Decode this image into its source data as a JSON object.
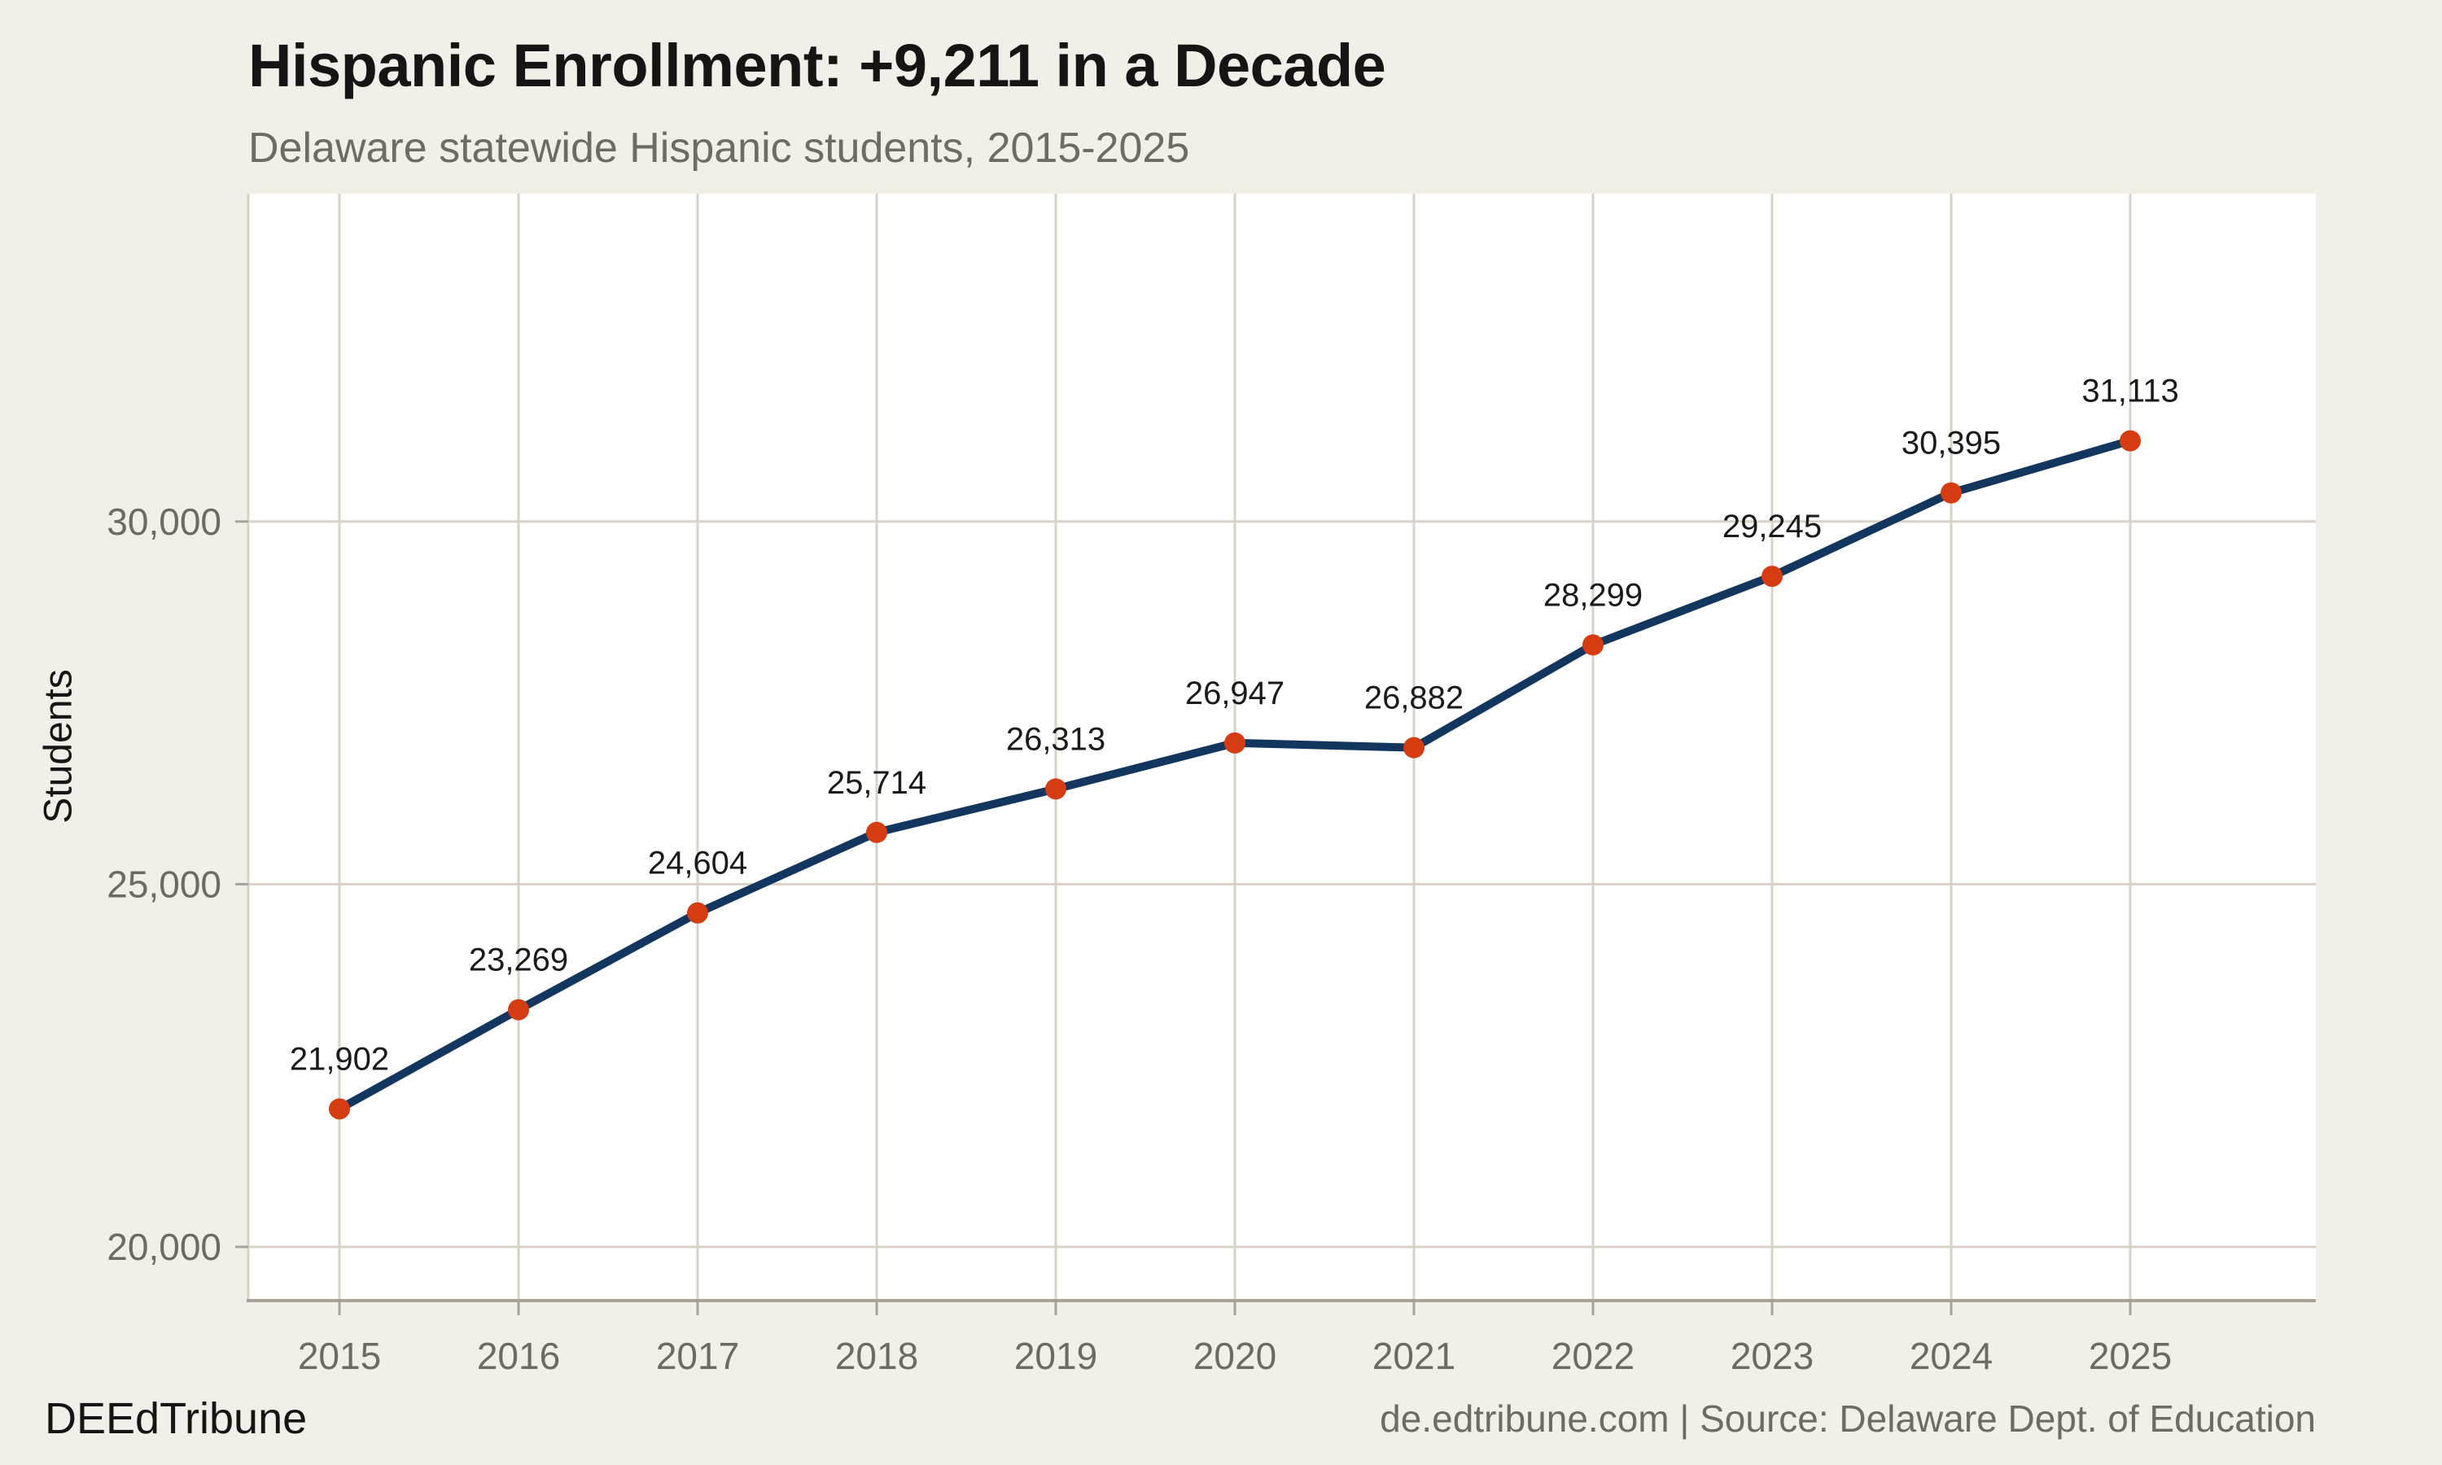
{
  "header": {
    "title": "Hispanic Enrollment: +9,211 in a Decade",
    "subtitle": "Delaware statewide Hispanic students, 2015-2025"
  },
  "footer": {
    "brand": "DEEdTribune",
    "source": "de.edtribune.com | Source: Delaware Dept. of Education"
  },
  "chart_data": {
    "type": "line",
    "title": "Hispanic Enrollment: +9,211 in a Decade",
    "subtitle": "Delaware statewide Hispanic students, 2015-2025",
    "xlabel": "",
    "ylabel": "Students",
    "x": [
      2015,
      2016,
      2017,
      2018,
      2019,
      2020,
      2021,
      2022,
      2023,
      2024,
      2025
    ],
    "series": [
      {
        "name": "Hispanic students",
        "values": [
          21902,
          23269,
          24604,
          25714,
          26313,
          26947,
          26882,
          28299,
          29245,
          30395,
          31113
        ]
      }
    ],
    "data_labels": [
      "21,902",
      "23,269",
      "24,604",
      "25,714",
      "26,313",
      "26,947",
      "26,882",
      "28,299",
      "29,245",
      "30,395",
      "31,113"
    ],
    "y_ticks": [
      20000,
      25000,
      30000
    ],
    "y_tick_labels": [
      "20,000",
      "25,000",
      "30,000"
    ],
    "ylim": [
      19260,
      34520
    ],
    "xlim": [
      2014.5,
      2026.05
    ],
    "grid": true,
    "legend": false,
    "line_color": "#12365e",
    "point_color": "#d63c12"
  }
}
